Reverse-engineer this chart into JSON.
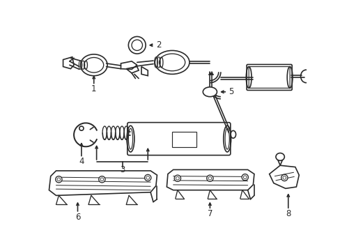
{
  "background_color": "#ffffff",
  "line_color": "#2a2a2a",
  "label_color": "#000000",
  "figure_width": 4.89,
  "figure_height": 3.6,
  "dpi": 100
}
